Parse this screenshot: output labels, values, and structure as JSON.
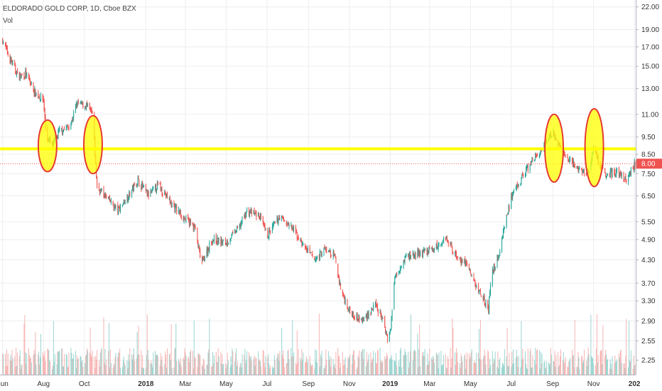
{
  "header": {
    "symbol_line": "ELDORADO GOLD CORP, 1D, Cboe BZX",
    "volume_label": "Vol"
  },
  "chart_data": {
    "type": "candlestick",
    "title": "ELDORADO GOLD CORP, 1D, Cboe BZX",
    "xlabel": "",
    "ylabel": "",
    "y_scale": "log",
    "ylim": [
      2.05,
      23.0
    ],
    "grid": true,
    "x_ticks": [
      "Jun",
      "Aug",
      "Oct",
      "2018",
      "Mar",
      "May",
      "Jul",
      "Sep",
      "Nov",
      "2019",
      "Mar",
      "May",
      "Jul",
      "Sep",
      "Nov",
      "202"
    ],
    "y_ticks": [
      "22.00",
      "19.00",
      "17.00",
      "15.00",
      "13.00",
      "11.00",
      "9.50",
      "8.50",
      "7.50",
      "6.50",
      "5.50",
      "4.90",
      "4.30",
      "3.70",
      "3.30",
      "2.90",
      "2.55",
      "2.25"
    ],
    "last_price": "8.00",
    "last_price_value": 8.0,
    "resistance_level": 8.8,
    "price_path": [
      [
        "2017-06-01",
        17.8
      ],
      [
        "2017-06-10",
        16.0
      ],
      [
        "2017-06-25",
        14.0
      ],
      [
        "2017-07-05",
        14.3
      ],
      [
        "2017-07-20",
        12.6
      ],
      [
        "2017-08-01",
        12.1
      ],
      [
        "2017-08-05",
        9.5
      ],
      [
        "2017-08-15",
        9.0
      ],
      [
        "2017-08-25",
        9.9
      ],
      [
        "2017-09-10",
        10.2
      ],
      [
        "2017-09-20",
        11.8
      ],
      [
        "2017-10-05",
        11.6
      ],
      [
        "2017-10-14",
        10.9
      ],
      [
        "2017-10-18",
        7.9
      ],
      [
        "2017-10-20",
        6.9
      ],
      [
        "2017-11-01",
        6.5
      ],
      [
        "2017-11-20",
        5.9
      ],
      [
        "2017-12-10",
        6.7
      ],
      [
        "2017-12-20",
        7.2
      ],
      [
        "2018-01-05",
        6.5
      ],
      [
        "2018-01-20",
        7.0
      ],
      [
        "2018-02-10",
        6.1
      ],
      [
        "2018-03-01",
        5.6
      ],
      [
        "2018-03-15",
        5.3
      ],
      [
        "2018-03-25",
        4.2
      ],
      [
        "2018-04-10",
        4.9
      ],
      [
        "2018-05-01",
        4.8
      ],
      [
        "2018-05-20",
        5.3
      ],
      [
        "2018-06-01",
        5.9
      ],
      [
        "2018-06-20",
        5.7
      ],
      [
        "2018-07-01",
        5.0
      ],
      [
        "2018-07-20",
        5.7
      ],
      [
        "2018-08-10",
        5.2
      ],
      [
        "2018-08-25",
        4.7
      ],
      [
        "2018-09-10",
        4.3
      ],
      [
        "2018-09-25",
        4.6
      ],
      [
        "2018-10-10",
        4.4
      ],
      [
        "2018-10-20",
        3.5
      ],
      [
        "2018-11-01",
        3.1
      ],
      [
        "2018-11-20",
        2.9
      ],
      [
        "2018-12-10",
        3.2
      ],
      [
        "2018-12-20",
        2.95
      ],
      [
        "2018-12-28",
        2.6
      ],
      [
        "2019-01-02",
        2.75
      ],
      [
        "2019-01-08",
        3.9
      ],
      [
        "2019-01-25",
        4.4
      ],
      [
        "2019-02-20",
        4.5
      ],
      [
        "2019-03-15",
        4.7
      ],
      [
        "2019-03-25",
        5.0
      ],
      [
        "2019-04-10",
        4.4
      ],
      [
        "2019-04-25",
        4.2
      ],
      [
        "2019-05-10",
        3.6
      ],
      [
        "2019-05-20",
        3.4
      ],
      [
        "2019-05-28",
        3.1
      ],
      [
        "2019-06-01",
        3.9
      ],
      [
        "2019-06-12",
        4.4
      ],
      [
        "2019-06-20",
        5.3
      ],
      [
        "2019-07-01",
        6.4
      ],
      [
        "2019-07-20",
        7.5
      ],
      [
        "2019-08-05",
        8.3
      ],
      [
        "2019-08-20",
        8.9
      ],
      [
        "2019-09-01",
        9.9
      ],
      [
        "2019-09-10",
        8.9
      ],
      [
        "2019-09-25",
        8.2
      ],
      [
        "2019-10-10",
        7.7
      ],
      [
        "2019-10-25",
        7.5
      ],
      [
        "2019-11-01",
        9.0
      ],
      [
        "2019-11-08",
        8.1
      ],
      [
        "2019-11-20",
        7.5
      ],
      [
        "2019-12-05",
        7.6
      ],
      [
        "2019-12-20",
        7.2
      ],
      [
        "2020-01-02",
        8.0
      ]
    ],
    "annotations": [
      {
        "type": "ellipse",
        "date": "2017-08-07",
        "y_low": 7.6,
        "y_high": 10.6,
        "color": "#ffff00"
      },
      {
        "type": "ellipse",
        "date": "2017-10-14",
        "y_low": 7.5,
        "y_high": 10.9,
        "color": "#ffff00"
      },
      {
        "type": "ellipse",
        "date": "2019-09-03",
        "y_low": 7.1,
        "y_high": 11.0,
        "color": "#ffff00"
      },
      {
        "type": "ellipse",
        "date": "2019-11-02",
        "y_low": 6.9,
        "y_high": 11.4,
        "color": "#ffff00"
      }
    ],
    "colors": {
      "up": "#26a69a",
      "down": "#ef5350",
      "volume_up": "#7fcbc4",
      "volume_down": "#f4a3a1",
      "resistance": "#ffff00",
      "last_price_line": "#ef5350",
      "grid": "#eeeeee",
      "ellipse_border": "#e53935"
    }
  }
}
